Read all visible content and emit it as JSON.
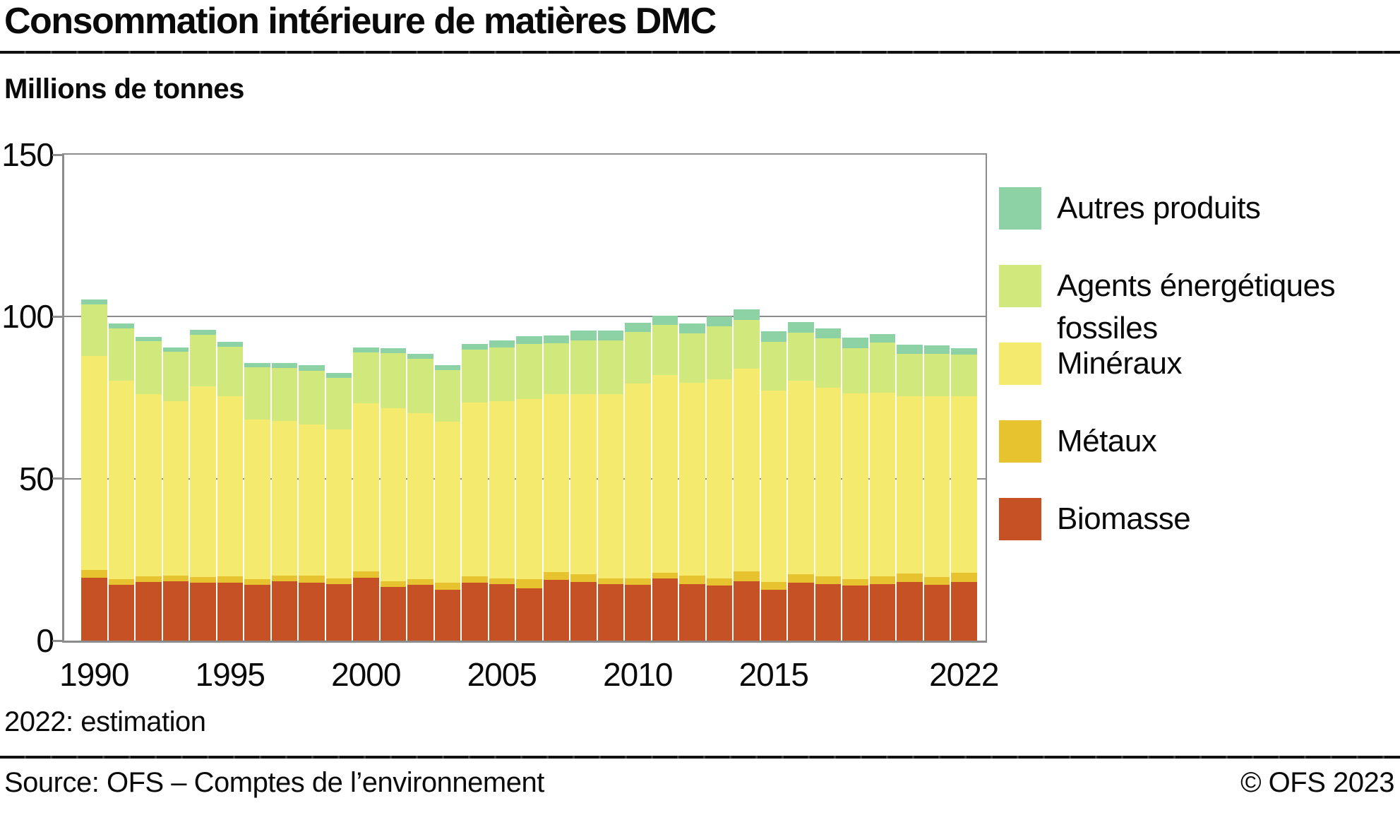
{
  "header": {
    "title": "Consommation intérieure de matières DMC",
    "subtitle": "Millions de tonnes"
  },
  "note": "2022: estimation",
  "footer": {
    "source": "Source: OFS – Comptes de l’environnement",
    "copyright": "© OFS 2023"
  },
  "colors": {
    "axis": "#8c8c8c",
    "biomasse": "#c65124",
    "metaux": "#e7c42f",
    "mineraux": "#f4ea6e",
    "fossiles": "#d0e87c",
    "autres": "#8dd2a5"
  },
  "legend": [
    {
      "label": "Autres produits",
      "color": "#8dd2a5"
    },
    {
      "label": "Agents énergétiques fossiles",
      "color": "#d0e87c"
    },
    {
      "label": "Minéraux",
      "color": "#f4ea6e"
    },
    {
      "label": "Métaux",
      "color": "#e7c42f"
    },
    {
      "label": "Biomasse",
      "color": "#c65124"
    }
  ],
  "chart_data": {
    "type": "bar",
    "stacked": true,
    "title": "Consommation intérieure de matières DMC",
    "ylabel": "Millions de tonnes",
    "xlabel": "",
    "ylim": [
      0,
      150
    ],
    "yticks": [
      0,
      50,
      100,
      150
    ],
    "gridlines": [
      50,
      100
    ],
    "legend_position": "right",
    "categories": [
      "1990",
      "1991",
      "1992",
      "1993",
      "1994",
      "1995",
      "1996",
      "1997",
      "1998",
      "1999",
      "2000",
      "2001",
      "2002",
      "2003",
      "2004",
      "2005",
      "2006",
      "2007",
      "2008",
      "2009",
      "2010",
      "2011",
      "2012",
      "2013",
      "2014",
      "2015",
      "2016",
      "2017",
      "2018",
      "2019",
      "2020",
      "2021",
      "2022"
    ],
    "xtick_labels": [
      "1990",
      "1995",
      "2000",
      "2005",
      "2010",
      "2015",
      "2022"
    ],
    "series": [
      {
        "name": "Biomasse",
        "color": "#c65124",
        "values": [
          19.3,
          17.2,
          18.0,
          18.4,
          17.8,
          17.9,
          17.3,
          18.4,
          17.9,
          17.5,
          19.3,
          16.6,
          17.3,
          15.7,
          17.8,
          17.5,
          16.2,
          18.8,
          18.2,
          17.5,
          17.2,
          19.1,
          17.5,
          17.1,
          18.4,
          15.7,
          17.9,
          17.5,
          17.0,
          17.5,
          18.2,
          17.3,
          18.0
        ]
      },
      {
        "name": "Métaux",
        "color": "#e7c42f",
        "values": [
          2.5,
          1.7,
          1.8,
          1.7,
          1.8,
          1.9,
          1.7,
          1.7,
          2.2,
          1.6,
          2.0,
          1.8,
          1.6,
          2.1,
          2.0,
          1.6,
          2.8,
          2.3,
          2.4,
          1.6,
          1.9,
          1.8,
          2.5,
          2.2,
          2.9,
          2.3,
          2.7,
          2.3,
          1.9,
          2.3,
          2.5,
          2.3,
          2.9
        ]
      },
      {
        "name": "Minéraux",
        "color": "#f4ea6e",
        "values": [
          66.1,
          61.3,
          56.3,
          53.9,
          59.0,
          55.7,
          49.2,
          47.7,
          46.6,
          46.0,
          51.9,
          53.3,
          51.4,
          49.8,
          53.6,
          54.9,
          55.5,
          55.0,
          55.5,
          57.0,
          60.3,
          61.1,
          59.5,
          61.3,
          62.7,
          59.2,
          59.6,
          58.3,
          57.4,
          56.7,
          54.7,
          55.8,
          54.5
        ]
      },
      {
        "name": "Agents énergétiques fossiles",
        "color": "#d0e87c",
        "values": [
          15.8,
          16.1,
          16.4,
          15.1,
          15.8,
          15.2,
          16.2,
          16.4,
          16.6,
          16.1,
          15.8,
          17.0,
          16.6,
          15.9,
          16.4,
          16.4,
          17.0,
          15.7,
          16.6,
          16.6,
          15.8,
          15.4,
          15.4,
          16.4,
          15.0,
          15.0,
          14.8,
          15.2,
          14.0,
          15.5,
          13.2,
          13.1,
          12.8
        ]
      },
      {
        "name": "Autres produits",
        "color": "#8dd2a5",
        "values": [
          1.7,
          1.6,
          1.3,
          1.3,
          1.6,
          1.5,
          1.4,
          1.4,
          1.7,
          1.4,
          1.4,
          1.6,
          1.6,
          1.6,
          1.7,
          2.3,
          2.4,
          2.4,
          3.1,
          3.1,
          2.9,
          3.0,
          3.0,
          3.1,
          3.3,
          3.2,
          3.3,
          3.0,
          3.3,
          2.7,
          2.7,
          2.6,
          2.1
        ]
      }
    ]
  }
}
